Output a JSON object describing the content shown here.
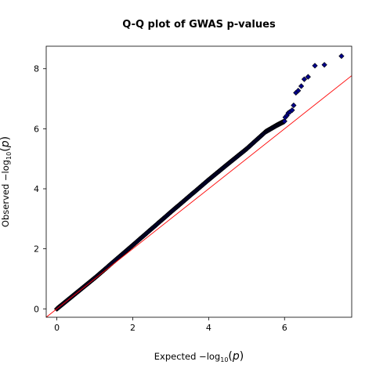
{
  "chart_data": {
    "type": "scatter",
    "title": "Q-Q plot of GWAS p-values",
    "xlabel": {
      "prefix": "Expected  −log",
      "sub": "10",
      "open": "(",
      "var": "p",
      "close": ")"
    },
    "ylabel": {
      "prefix": "Observed  −log",
      "sub": "10",
      "open": "(",
      "var": "p",
      "close": ")"
    },
    "xlim": [
      -0.28,
      7.77
    ],
    "ylim": [
      -0.28,
      8.75
    ],
    "x_ticks": [
      0,
      2,
      4,
      6
    ],
    "y_ticks": [
      0,
      2,
      4,
      6,
      8
    ],
    "x_tick_labels": [
      "0",
      "2",
      "4",
      "6"
    ],
    "y_tick_labels": [
      "0",
      "2",
      "4",
      "6",
      "8"
    ],
    "grid": false,
    "reference_line": {
      "slope": 1,
      "intercept": 0,
      "color": "#ff0000"
    },
    "marker": {
      "shape": "diamond",
      "fill": "#00008b",
      "edge": "#000000"
    },
    "series_curve_knots": [
      [
        0,
        0
      ],
      [
        1,
        1.03
      ],
      [
        2,
        2.12
      ],
      [
        3,
        3.22
      ],
      [
        4,
        4.3
      ],
      [
        4.5,
        4.82
      ],
      [
        5,
        5.33
      ],
      [
        5.5,
        5.9
      ],
      [
        5.8,
        6.12
      ],
      [
        6.0,
        6.25
      ]
    ],
    "tail_points": [
      [
        6.02,
        6.38
      ],
      [
        6.06,
        6.44
      ],
      [
        6.1,
        6.53
      ],
      [
        6.14,
        6.56
      ],
      [
        6.2,
        6.62
      ],
      [
        6.24,
        6.78
      ],
      [
        6.3,
        7.2
      ],
      [
        6.36,
        7.27
      ],
      [
        6.44,
        7.42
      ],
      [
        6.52,
        7.65
      ],
      [
        6.62,
        7.73
      ],
      [
        6.8,
        8.1
      ],
      [
        7.05,
        8.13
      ],
      [
        7.5,
        8.42
      ]
    ]
  }
}
